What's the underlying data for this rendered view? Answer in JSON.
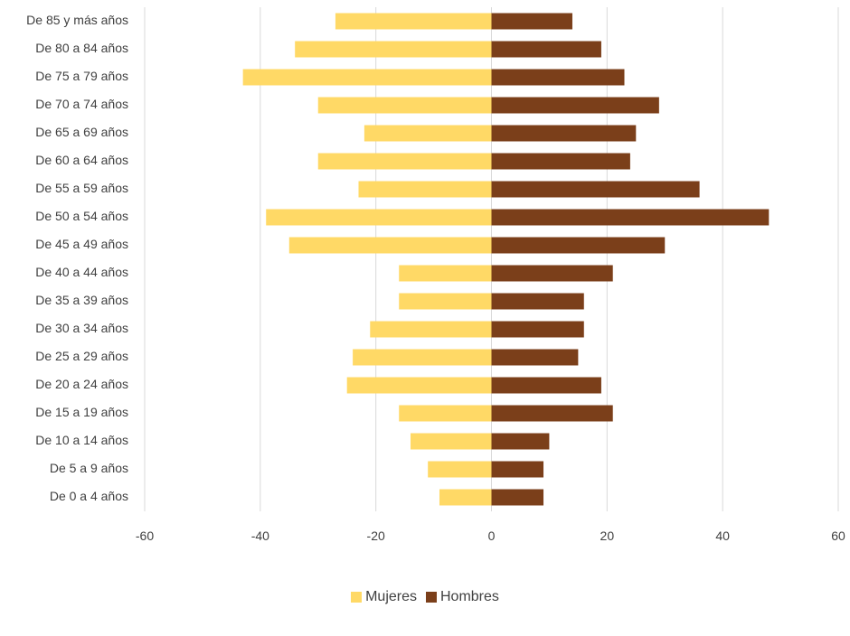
{
  "chart_data": {
    "type": "bar",
    "orientation": "horizontal",
    "stacked": true,
    "categories": [
      "De 85 y más años",
      "De 80 a 84 años",
      "De 75 a 79 años",
      "De 70 a 74 años",
      "De 65 a 69 años",
      "De 60 a 64 años",
      "De 55 a 59 años",
      "De 50 a 54 años",
      "De 45 a 49 años",
      "De 40 a 44 años",
      "De 35 a 39 años",
      "De 30 a 34 años",
      "De 25 a 29 años",
      "De 20 a 24 años",
      "De 15 a 19 años",
      "De 10 a 14 años",
      "De 5 a 9 años",
      "De 0 a 4 años"
    ],
    "series": [
      {
        "name": "Mujeres",
        "color": "#ffd966",
        "values": [
          -27,
          -34,
          -43,
          -30,
          -22,
          -30,
          -23,
          -39,
          -35,
          -16,
          -16,
          -21,
          -24,
          -25,
          -16,
          -14,
          -11,
          -9
        ]
      },
      {
        "name": "Hombres",
        "color": "#7b3f1a",
        "values": [
          14,
          19,
          23,
          29,
          25,
          24,
          36,
          48,
          30,
          21,
          16,
          16,
          15,
          19,
          21,
          10,
          9,
          9
        ]
      }
    ],
    "xlim": [
      -60,
      60
    ],
    "xticks": [
      "-60",
      "-40",
      "-20",
      "0",
      "20",
      "40",
      "60"
    ],
    "grid": "vertical",
    "legend": "bottom",
    "title": "",
    "xlabel": "",
    "ylabel": ""
  }
}
